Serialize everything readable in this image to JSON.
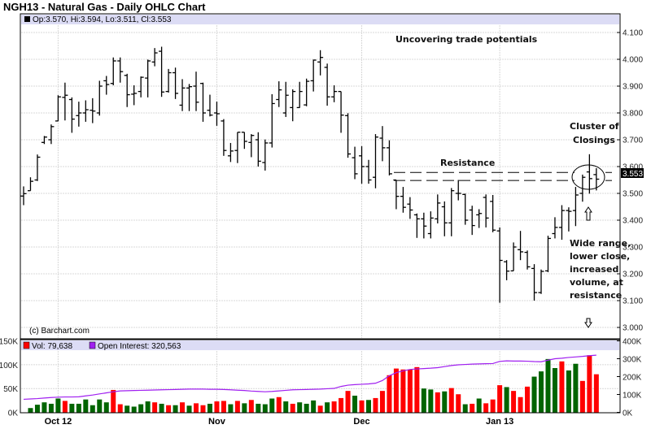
{
  "title": "NGH13 - Natural Gas - Daily OHLC Chart",
  "ohlc_header": "Op:3.570, Hi:3.594, Lo:3.511, Cl:3.553",
  "copyright": "(c) Barchart.com",
  "volume_legend": {
    "vol": "Vol: 79,638",
    "oi": "Open Interest: 320,563"
  },
  "last_price_label": "3.553",
  "annotations": {
    "headline": "Uncovering trade potentials",
    "resistance": "Resistance",
    "cluster": [
      "Cluster of",
      "Closings"
    ],
    "wide_range": [
      "Wide range,",
      "lower close,",
      "increased",
      "volume, at",
      "resistance"
    ]
  },
  "colors": {
    "up_volume": "#006400",
    "down_volume": "#ff0000",
    "open_interest": "#a020f0",
    "price_bar": "#000000",
    "header_band": "#dcdcf5"
  },
  "chart_data": [
    {
      "type": "ohlc",
      "title": "NGH13 - Natural Gas - Daily OHLC Chart",
      "ylim": [
        3.0,
        4.1
      ],
      "y_ticks": [
        "3.000",
        "3.100",
        "3.200",
        "3.300",
        "3.400",
        "3.500",
        "3.600",
        "3.700",
        "3.800",
        "3.900",
        "4.000",
        "4.100"
      ],
      "x_ticks": [
        {
          "label": "Oct 12",
          "bar": 6
        },
        {
          "label": "Nov",
          "bar": 29
        },
        {
          "label": "Dec",
          "bar": 50
        },
        {
          "label": "Jan 13",
          "bar": 70
        }
      ],
      "grid": true,
      "resistance_levels": [
        3.578,
        3.548
      ],
      "bars": [
        [
          3.49,
          3.526,
          3.456,
          3.499
        ],
        [
          3.51,
          3.56,
          3.51,
          3.545
        ],
        [
          3.55,
          3.645,
          3.546,
          3.635
        ],
        [
          3.69,
          3.714,
          3.684,
          3.71
        ],
        [
          3.7,
          3.757,
          3.684,
          3.749
        ],
        [
          3.77,
          3.866,
          3.769,
          3.86
        ],
        [
          3.858,
          3.913,
          3.772,
          3.866
        ],
        [
          3.85,
          3.858,
          3.726,
          3.777
        ],
        [
          3.79,
          3.842,
          3.749,
          3.8
        ],
        [
          3.8,
          3.847,
          3.767,
          3.812
        ],
        [
          3.81,
          3.855,
          3.762,
          3.807
        ],
        [
          3.8,
          3.92,
          3.79,
          3.9
        ],
        [
          3.92,
          3.938,
          3.868,
          3.906
        ],
        [
          3.91,
          4.007,
          3.903,
          3.994
        ],
        [
          3.994,
          4.007,
          3.913,
          3.954
        ],
        [
          3.94,
          3.946,
          3.822,
          3.868
        ],
        [
          3.87,
          3.903,
          3.829,
          3.873
        ],
        [
          3.88,
          3.936,
          3.858,
          3.933
        ],
        [
          3.93,
          3.999,
          3.858,
          3.994
        ],
        [
          3.99,
          4.042,
          3.974,
          4.024
        ],
        [
          4.03,
          4.047,
          3.86,
          3.878
        ],
        [
          3.88,
          3.964,
          3.876,
          3.95
        ],
        [
          3.95,
          3.969,
          3.852,
          3.873
        ],
        [
          3.829,
          3.926,
          3.807,
          3.893
        ],
        [
          3.893,
          3.908,
          3.807,
          3.898
        ],
        [
          3.9,
          3.954,
          3.807,
          3.84
        ],
        [
          3.91,
          3.913,
          3.767,
          3.8
        ],
        [
          3.81,
          3.868,
          3.787,
          3.792
        ],
        [
          3.8,
          3.842,
          3.752,
          3.797
        ],
        [
          3.77,
          3.777,
          3.64,
          3.66
        ],
        [
          3.64,
          3.688,
          3.617,
          3.658
        ],
        [
          3.66,
          3.728,
          3.613,
          3.728
        ],
        [
          3.728,
          3.728,
          3.666,
          3.694
        ],
        [
          3.69,
          3.721,
          3.635,
          3.716
        ],
        [
          3.7,
          3.728,
          3.6,
          3.62
        ],
        [
          3.615,
          3.701,
          3.585,
          3.688
        ],
        [
          3.688,
          3.87,
          3.671,
          3.835
        ],
        [
          3.85,
          3.918,
          3.822,
          3.886
        ],
        [
          3.8,
          3.916,
          3.785,
          3.866
        ],
        [
          3.82,
          3.888,
          3.769,
          3.88
        ],
        [
          3.82,
          3.916,
          3.819,
          3.88
        ],
        [
          3.83,
          3.928,
          3.825,
          3.918
        ],
        [
          3.92,
          3.999,
          3.88,
          3.997
        ],
        [
          3.99,
          4.034,
          3.94,
          4.007
        ],
        [
          3.97,
          3.984,
          3.827,
          3.86
        ],
        [
          3.86,
          3.903,
          3.84,
          3.88
        ],
        [
          3.88,
          3.88,
          3.726,
          3.792
        ],
        [
          3.79,
          3.799,
          3.633,
          3.647
        ],
        [
          3.633,
          3.674,
          3.553,
          3.573
        ],
        [
          3.64,
          3.676,
          3.536,
          3.6
        ],
        [
          3.6,
          3.625,
          3.536,
          3.55
        ],
        [
          3.56,
          3.721,
          3.519,
          3.71
        ],
        [
          3.706,
          3.751,
          3.62,
          3.67
        ],
        [
          3.67,
          3.698,
          3.567,
          3.573
        ],
        [
          3.55,
          3.55,
          3.441,
          3.489
        ],
        [
          3.489,
          3.524,
          3.428,
          3.448
        ],
        [
          3.46,
          3.486,
          3.405,
          3.438
        ],
        [
          3.42,
          3.425,
          3.334,
          3.405
        ],
        [
          3.405,
          3.428,
          3.332,
          3.378
        ],
        [
          3.35,
          3.433,
          3.332,
          3.408
        ],
        [
          3.405,
          3.496,
          3.388,
          3.464
        ],
        [
          3.45,
          3.47,
          3.34,
          3.39
        ],
        [
          3.39,
          3.52,
          3.34,
          3.51
        ],
        [
          3.5,
          3.55,
          3.474,
          3.5
        ],
        [
          3.496,
          3.499,
          3.383,
          3.4
        ],
        [
          3.438,
          3.454,
          3.345,
          3.38
        ],
        [
          3.42,
          3.441,
          3.371,
          3.425
        ],
        [
          3.485,
          3.496,
          3.373,
          3.408
        ],
        [
          3.47,
          3.494,
          3.355,
          3.363
        ],
        [
          3.36,
          3.373,
          3.092,
          3.25
        ],
        [
          3.245,
          3.251,
          3.176,
          3.21
        ],
        [
          3.211,
          3.317,
          3.211,
          3.3
        ],
        [
          3.29,
          3.36,
          3.251,
          3.282
        ],
        [
          3.28,
          3.287,
          3.216,
          3.226
        ],
        [
          3.22,
          3.236,
          3.1,
          3.13
        ],
        [
          3.13,
          3.216,
          3.125,
          3.209
        ],
        [
          3.211,
          3.342,
          3.206,
          3.332
        ],
        [
          3.35,
          3.411,
          3.332,
          3.373
        ],
        [
          3.373,
          3.456,
          3.327,
          3.436
        ],
        [
          3.436,
          3.448,
          3.358,
          3.433
        ],
        [
          3.436,
          3.524,
          3.378,
          3.494
        ],
        [
          3.5,
          3.57,
          3.469,
          3.56
        ],
        [
          3.58,
          3.646,
          3.499,
          3.555
        ],
        [
          3.57,
          3.594,
          3.511,
          3.553
        ]
      ]
    },
    {
      "type": "bar",
      "series_name": "Vol",
      "unit": "K",
      "ylim": [
        0,
        150
      ],
      "y_ticks": [
        "0K",
        "50K",
        "100K",
        "150K"
      ],
      "values": [
        null,
        9,
        16,
        21,
        18,
        29,
        24,
        18,
        18,
        27,
        15,
        27,
        21,
        47,
        17,
        14,
        12,
        17,
        23,
        21,
        18,
        15,
        15,
        21,
        14,
        19,
        15,
        18,
        23,
        24,
        17,
        24,
        19,
        26,
        18,
        17,
        29,
        32,
        23,
        18,
        21,
        18,
        25,
        14,
        21,
        23,
        30,
        45,
        35,
        25,
        26,
        30,
        45,
        78,
        92,
        90,
        90,
        95,
        50,
        48,
        42,
        44,
        51,
        38,
        17,
        18,
        29,
        19,
        27,
        57,
        53,
        45,
        32,
        54,
        75,
        86,
        112,
        93,
        107,
        88,
        102,
        66,
        120,
        80
      ],
      "direction": "-gggggrggggggrrggggrgrgrgrrgrrgrgrgggrgrgggrgrrrgrgrrrrrrrggrgrrgrgrrrgrrrggggrggrr"
    },
    {
      "type": "line",
      "series_name": "Open Interest",
      "unit": "K",
      "ylim": [
        0,
        400
      ],
      "y_ticks": [
        "0K",
        "100K",
        "200K",
        "300K",
        "400K"
      ],
      "values": [
        73,
        75,
        77,
        80,
        83,
        85,
        86,
        86,
        87,
        92,
        97,
        103,
        109,
        115,
        120,
        121,
        122,
        123,
        124,
        125,
        126,
        127,
        128,
        129,
        130,
        130,
        130,
        129,
        129,
        128,
        126,
        124,
        122,
        119,
        117,
        115,
        117,
        120,
        123,
        126,
        127,
        128,
        129,
        130,
        132,
        134,
        145,
        152,
        155,
        157,
        159,
        163,
        178,
        205,
        222,
        232,
        240,
        243,
        245,
        247,
        250,
        256,
        262,
        266,
        268,
        270,
        271,
        272,
        273,
        285,
        288,
        287,
        287,
        286,
        284,
        283,
        292,
        300,
        303,
        307,
        310,
        313,
        317,
        320
      ]
    }
  ]
}
